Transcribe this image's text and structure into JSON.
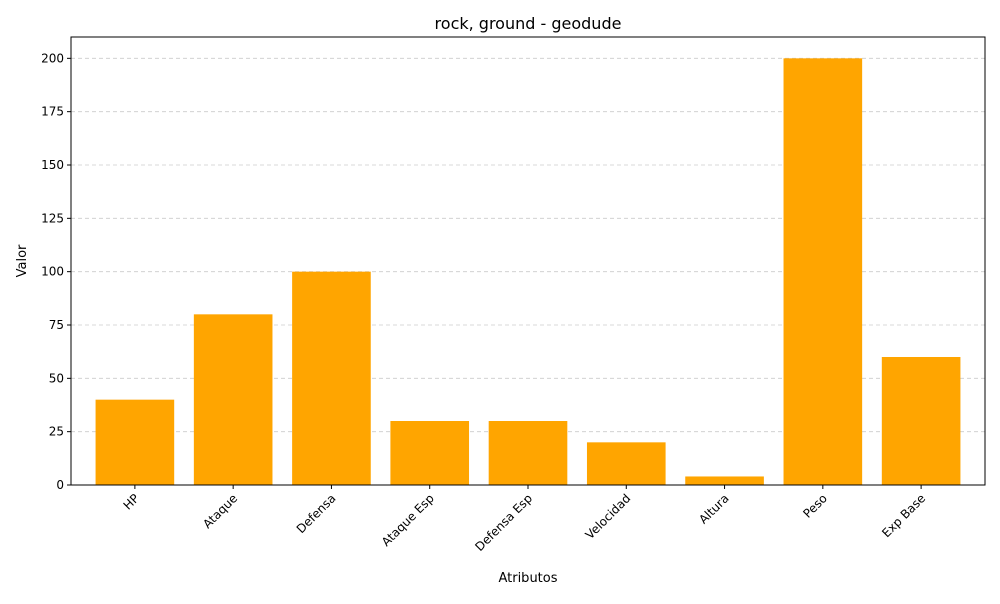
{
  "chart_data": {
    "type": "bar",
    "title": "rock, ground - geodude",
    "xlabel": "Atributos",
    "ylabel": "Valor",
    "categories": [
      "HP",
      "Ataque",
      "Defensa",
      "Ataque Esp",
      "Defensa Esp",
      "Velocidad",
      "Altura",
      "Peso",
      "Exp Base"
    ],
    "values": [
      40,
      80,
      100,
      30,
      30,
      20,
      4,
      200,
      60
    ],
    "ylim": [
      0,
      210
    ],
    "yticks": [
      0,
      25,
      50,
      75,
      100,
      125,
      150,
      175,
      200
    ],
    "grid": "y-dashed",
    "legend": "none",
    "bar_color": "#ffa500",
    "grid_color": "#cccccc"
  }
}
